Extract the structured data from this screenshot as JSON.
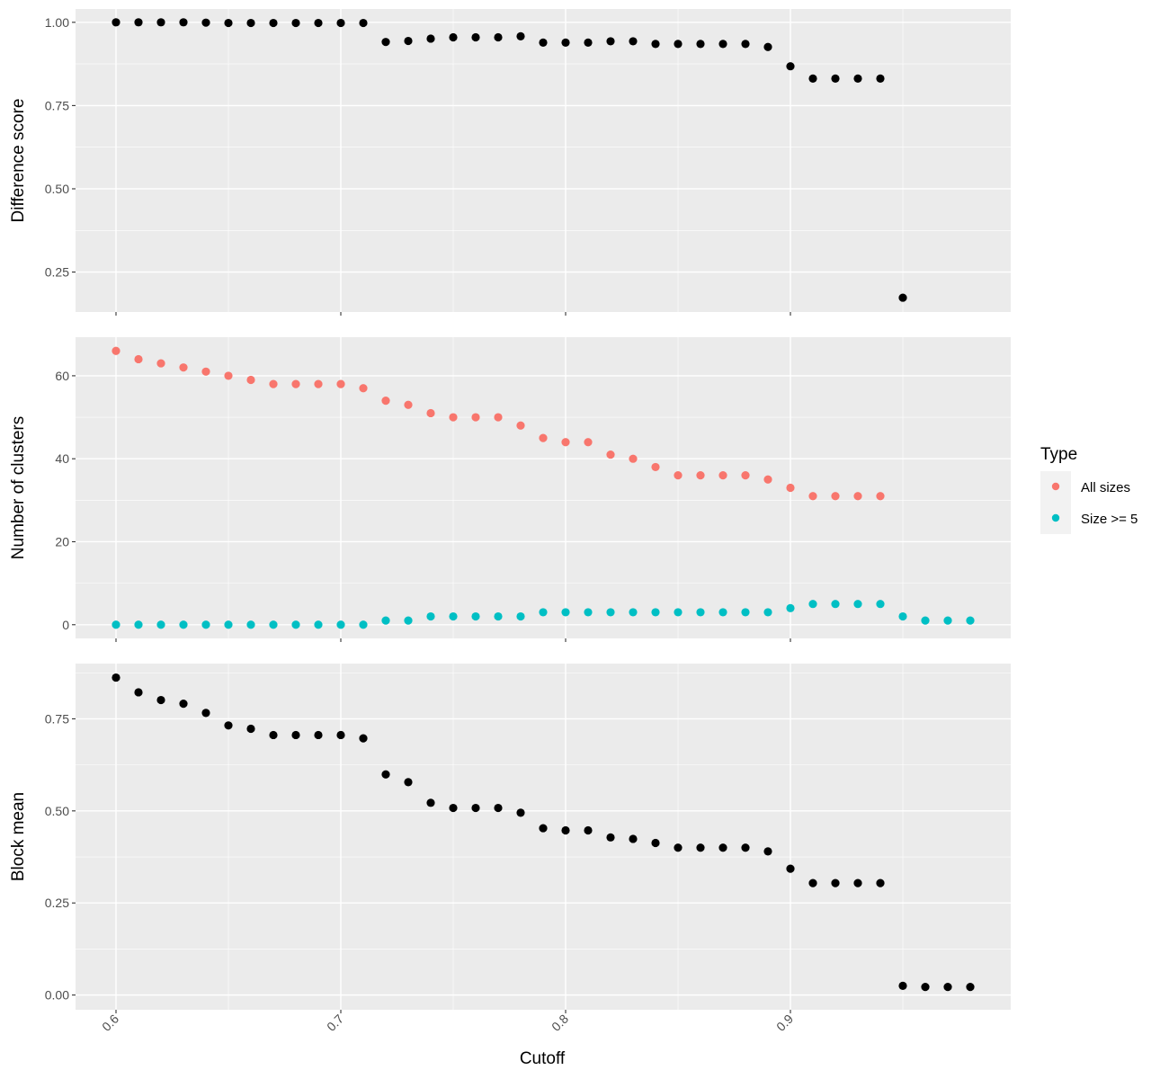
{
  "chart_data": {
    "type": "scatter",
    "xlabel": "Cutoff",
    "xlim": [
      0.582,
      0.998
    ],
    "x_ticks": [
      0.6,
      0.7,
      0.8,
      0.9
    ],
    "x_tick_labels": [
      "0.6",
      "0.7",
      "0.8",
      "0.9"
    ],
    "colors": {
      "panel_bg": "#ebebeb",
      "grid": "#ffffff",
      "point": "#000000",
      "all_sizes": "#f8766d",
      "size_ge_5": "#00bfc4"
    },
    "legend": {
      "title": "Type",
      "placement": "right",
      "entries": [
        {
          "label": "All sizes",
          "color": "#f8766d"
        },
        {
          "label": "Size >= 5",
          "color": "#00bfc4"
        }
      ]
    },
    "panels": [
      {
        "ylabel": "Difference score",
        "ylim": [
          0.13,
          1.04
        ],
        "y_ticks": [
          0.25,
          0.5,
          0.75,
          1.0
        ],
        "y_tick_labels": [
          "0.25",
          "0.50",
          "0.75",
          "1.00"
        ],
        "series": [
          {
            "x": [
              0.6,
              0.61,
              0.62,
              0.63,
              0.64,
              0.65,
              0.66,
              0.67,
              0.68,
              0.69,
              0.7,
              0.71,
              0.72,
              0.73,
              0.74,
              0.75,
              0.76,
              0.77,
              0.78,
              0.79,
              0.8,
              0.81,
              0.82,
              0.83,
              0.84,
              0.85,
              0.86,
              0.87,
              0.88,
              0.89,
              0.9,
              0.91,
              0.92,
              0.93,
              0.94,
              0.95
            ],
            "values": [
              1.0,
              1.0,
              1.0,
              1.0,
              0.999,
              0.998,
              0.998,
              0.998,
              0.998,
              0.998,
              0.998,
              0.998,
              0.941,
              0.944,
              0.951,
              0.955,
              0.955,
              0.955,
              0.958,
              0.939,
              0.939,
              0.939,
              0.943,
              0.943,
              0.935,
              0.935,
              0.935,
              0.935,
              0.935,
              0.926,
              0.868,
              0.831,
              0.831,
              0.831,
              0.831,
              0.173
            ]
          }
        ]
      },
      {
        "ylabel": "Number of clusters",
        "ylim": [
          -3.3,
          69.3
        ],
        "y_ticks": [
          0,
          20,
          40,
          60
        ],
        "y_tick_labels": [
          "0",
          "20",
          "40",
          "60"
        ],
        "series": [
          {
            "name": "All sizes",
            "x": [
              0.6,
              0.61,
              0.62,
              0.63,
              0.64,
              0.65,
              0.66,
              0.67,
              0.68,
              0.69,
              0.7,
              0.71,
              0.72,
              0.73,
              0.74,
              0.75,
              0.76,
              0.77,
              0.78,
              0.79,
              0.8,
              0.81,
              0.82,
              0.83,
              0.84,
              0.85,
              0.86,
              0.87,
              0.88,
              0.89,
              0.9,
              0.91,
              0.92,
              0.93,
              0.94
            ],
            "values": [
              66,
              64,
              63,
              62,
              61,
              60,
              59,
              58,
              58,
              58,
              58,
              57,
              54,
              53,
              51,
              50,
              50,
              50,
              48,
              45,
              44,
              44,
              41,
              40,
              38,
              36,
              36,
              36,
              36,
              35,
              33,
              31,
              31,
              31,
              31
            ]
          },
          {
            "name": "Size >= 5",
            "x": [
              0.6,
              0.61,
              0.62,
              0.63,
              0.64,
              0.65,
              0.66,
              0.67,
              0.68,
              0.69,
              0.7,
              0.71,
              0.72,
              0.73,
              0.74,
              0.75,
              0.76,
              0.77,
              0.78,
              0.79,
              0.8,
              0.81,
              0.82,
              0.83,
              0.84,
              0.85,
              0.86,
              0.87,
              0.88,
              0.89,
              0.9,
              0.91,
              0.92,
              0.93,
              0.94,
              0.95,
              0.96,
              0.97,
              0.98
            ],
            "values": [
              0,
              0,
              0,
              0,
              0,
              0,
              0,
              0,
              0,
              0,
              0,
              0,
              1,
              1,
              2,
              2,
              2,
              2,
              2,
              3,
              3,
              3,
              3,
              3,
              3,
              3,
              3,
              3,
              3,
              3,
              4,
              5,
              5,
              5,
              5,
              2,
              1,
              1,
              1
            ]
          }
        ]
      },
      {
        "ylabel": "Block mean",
        "ylim": [
          -0.04,
          0.9
        ],
        "y_ticks": [
          0.0,
          0.25,
          0.5,
          0.75
        ],
        "y_tick_labels": [
          "0.00",
          "0.25",
          "0.50",
          "0.75"
        ],
        "series": [
          {
            "x": [
              0.6,
              0.61,
              0.62,
              0.63,
              0.64,
              0.65,
              0.66,
              0.67,
              0.68,
              0.69,
              0.7,
              0.71,
              0.72,
              0.73,
              0.74,
              0.75,
              0.76,
              0.77,
              0.78,
              0.79,
              0.8,
              0.81,
              0.82,
              0.83,
              0.84,
              0.85,
              0.86,
              0.87,
              0.88,
              0.89,
              0.9,
              0.91,
              0.92,
              0.93,
              0.94,
              0.95,
              0.96,
              0.97,
              0.98
            ],
            "values": [
              0.862,
              0.822,
              0.801,
              0.791,
              0.766,
              0.732,
              0.723,
              0.706,
              0.706,
              0.706,
              0.706,
              0.697,
              0.599,
              0.578,
              0.522,
              0.508,
              0.508,
              0.508,
              0.495,
              0.453,
              0.447,
              0.447,
              0.428,
              0.424,
              0.413,
              0.4,
              0.4,
              0.4,
              0.4,
              0.39,
              0.343,
              0.304,
              0.304,
              0.304,
              0.304,
              0.025,
              0.022,
              0.022,
              0.022
            ]
          }
        ]
      }
    ]
  }
}
